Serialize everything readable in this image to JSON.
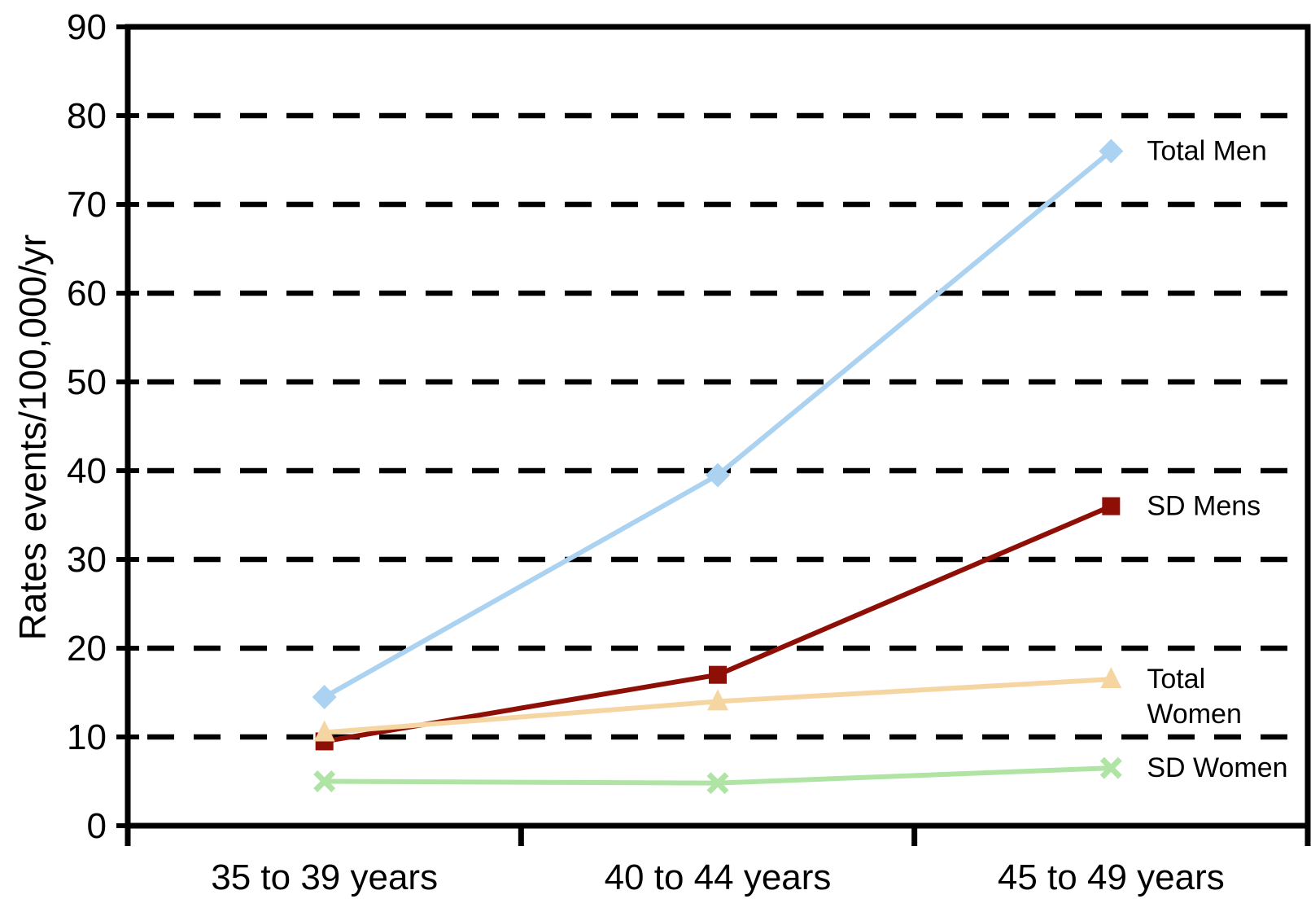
{
  "chart_data": {
    "type": "line",
    "title": "",
    "xlabel": "",
    "ylabel": "Rates events/100,000/yr",
    "ylim": [
      0,
      90
    ],
    "ytick_step": 10,
    "grid": "horizontal-dashed",
    "legend_position": "inline-right-of-last-point",
    "categories": [
      "35 to 39 years",
      "40 to 44 years",
      "45 to 49 years"
    ],
    "series": [
      {
        "name": "Total Men",
        "label_lines": [
          "Total Men"
        ],
        "values": [
          14.5,
          39.5,
          76
        ],
        "color": "#ABD3F1",
        "marker": "diamond"
      },
      {
        "name": "SD Mens",
        "label_lines": [
          "SD Mens"
        ],
        "values": [
          9.5,
          17,
          36
        ],
        "color": "#8E0F06",
        "marker": "square"
      },
      {
        "name": "Total Women",
        "label_lines": [
          "Total",
          "Women"
        ],
        "values": [
          10.5,
          14,
          16.5
        ],
        "color": "#F5D6A3",
        "marker": "triangle"
      },
      {
        "name": "SD Women",
        "label_lines": [
          "SD Women"
        ],
        "values": [
          5,
          4.8,
          6.5
        ],
        "color": "#AFE4A5",
        "marker": "x"
      }
    ],
    "ytick_labels": [
      "0",
      "10",
      "20",
      "30",
      "40",
      "50",
      "60",
      "70",
      "80",
      "90"
    ]
  }
}
